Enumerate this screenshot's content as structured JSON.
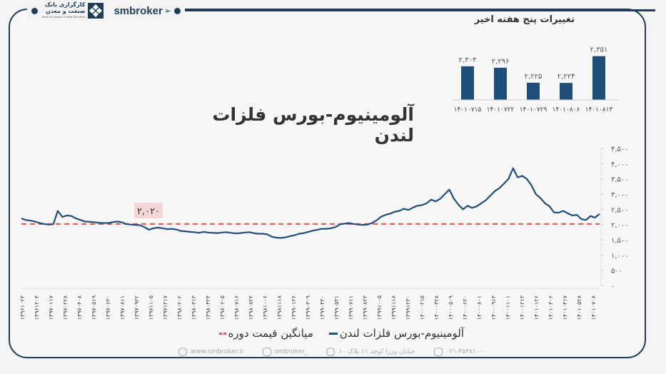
{
  "header": {
    "bank_name_line1": "کارگزاری بانک",
    "bank_name_line2": "صنعت و معدن",
    "bank_name_en": "Bank of Industry & Mine Securities",
    "brand": "smbroker"
  },
  "colors": {
    "frame": "#1f3d5a",
    "series": "#1f4e79",
    "average_line": "#e05a5a",
    "annotation_bg": "#f7d6d6",
    "bar": "#1f4e79"
  },
  "legend": {
    "series_label": "آلومینیوم-بورس فلزات لندن",
    "average_label": "میانگین قیمت دوره"
  },
  "footer": {
    "website": "www.smbroker.ir",
    "instagram": "smbroker_",
    "address": "خیابان وزرا کوچه ۱۱ پلاک ۱۰",
    "phone": "۰۲۱-۴۵۴۸۱۰۰۰"
  },
  "chart_data": [
    {
      "type": "bar",
      "title": "تغییرات پنج هفته اخیر",
      "categories": [
        "14010715",
        "14010722",
        "14010729",
        "14010806",
        "14010813"
      ],
      "values": [
        2303,
        2296,
        2225,
        2224,
        2351
      ],
      "value_labels": [
        "۲,۳۰۳",
        "۲,۲۹۶",
        "۲,۲۲۵",
        "۲,۲۲۴",
        "۲,۳۵۱"
      ],
      "category_labels": [
        "۱۴۰۱۰۷۱۵",
        "۱۴۰۱۰۷۲۲",
        "۱۴۰۱۰۷۲۹",
        "۱۴۰۱۰۸۰۶",
        "۱۴۰۱۰۸۱۳"
      ]
    },
    {
      "type": "line",
      "title": "آلومینیوم-بورس فلزات لندن",
      "xlabel": "",
      "ylabel": "",
      "ylim": [
        0,
        4500
      ],
      "yticks": [
        0,
        500,
        1000,
        1500,
        2000,
        2500,
        3000,
        3500,
        4000,
        4500
      ],
      "ytick_labels": [
        "۰",
        "۵۰۰",
        "۱,۰۰۰",
        "۱,۵۰۰",
        "۲,۰۰۰",
        "۲,۵۰۰",
        "۳,۰۰۰",
        "۳,۵۰۰",
        "۴,۰۰۰",
        "۴,۵۰۰"
      ],
      "y_axis_position": "right",
      "grid": false,
      "legend_position": "bottom",
      "x_tick_labels": [
        "۱۳۹۶۱۰۲۳",
        "۱۳۹۶۱۲۰۴",
        "۱۳۹۷۰۱۱۷",
        "۱۳۹۷۰۲۲۸",
        "۱۳۹۷۰۴۰۸",
        "۱۳۹۷۰۵۱۹",
        "۱۳۹۷۰۶۳۰",
        "۱۳۹۷۰۸۱۱",
        "۱۳۹۷۰۹۲۲",
        "۱۳۹۷۱۱۰۵",
        "۱۳۹۷۱۲۱۷",
        "۱۳۹۸۰۲۰۲",
        "۱۳۹۸۰۳۱۳",
        "۱۳۹۸۰۴۲۴",
        "۱۳۹۸۰۶۰۵",
        "۱۳۹۸۰۷۱۶",
        "۱۳۹۸۰۸۲۴",
        "۱۳۹۸۱۰۰۶",
        "۱۳۹۸۱۱۱۸",
        "۱۳۹۹۰۱۳۶",
        "۱۳۹۹۰۳۰۹",
        "۱۳۹۹۰۴۲۰",
        "۱۳۹۹۰۵۳۱",
        "۱۳۹۹۰۷۱۱",
        "۱۳۹۹۰۸۲۳",
        "۱۳۹۹۱۰۰۵",
        "۱۳۹۹۱۱۱۸",
        "۱۳۹۹۱۲۳۰",
        "۱۴۰۰۰۲۱۵",
        "۱۴۰۰۰۳۲۸",
        "۱۴۰۰۰۵۰۹",
        "۱۴۰۰۰۶۲۰",
        "۱۴۰۰۰۸۰۱",
        "۱۴۰۰۰۹۱۳",
        "۱۴۰۰۱۱۰۱",
        "۱۴۰۰۱۲۱۳",
        "۱۴۰۱۰۱۲۶",
        "۱۴۰۱۰۳۰۶",
        "۱۴۰۱۰۴۱۷",
        "۱۴۰۱۰۵۲۸",
        "۱۴۰۱۰۷۰۸"
      ],
      "series": [
        {
          "name": "آلومینیوم-بورس فلزات لندن",
          "values": [
            2200,
            2150,
            2130,
            2100,
            2050,
            2020,
            2000,
            2010,
            2450,
            2250,
            2300,
            2280,
            2200,
            2150,
            2100,
            2090,
            2080,
            2060,
            2050,
            2050,
            2080,
            2100,
            2080,
            2020,
            2000,
            1990,
            1980,
            1920,
            1830,
            1880,
            1900,
            1880,
            1850,
            1860,
            1840,
            1790,
            1780,
            1760,
            1750,
            1730,
            1760,
            1740,
            1730,
            1720,
            1740,
            1750,
            1730,
            1710,
            1720,
            1740,
            1750,
            1720,
            1700,
            1700,
            1680,
            1600,
            1570,
            1560,
            1580,
            1620,
            1650,
            1700,
            1720,
            1760,
            1800,
            1830,
            1860,
            1860,
            1880,
            1920,
            2010,
            2030,
            2050,
            2020,
            2000,
            1990,
            2000,
            2050,
            2140,
            2260,
            2320,
            2360,
            2420,
            2450,
            2520,
            2480,
            2560,
            2620,
            2640,
            2700,
            2820,
            2760,
            2850,
            3000,
            3150,
            2850,
            2650,
            2500,
            2620,
            2550,
            2600,
            2700,
            2800,
            2950,
            3100,
            3200,
            3350,
            3500,
            3850,
            3550,
            3600,
            3500,
            3300,
            3000,
            2870,
            2700,
            2600,
            2400,
            2390,
            2450,
            2370,
            2300,
            2320,
            2180,
            2150,
            2280,
            2230,
            2351
          ]
        },
        {
          "name": "میانگین قیمت دوره",
          "values_constant": 2020
        }
      ],
      "annotations": [
        {
          "text": "۲,۰۲۰",
          "value": 2020,
          "label": "average price"
        }
      ]
    }
  ]
}
